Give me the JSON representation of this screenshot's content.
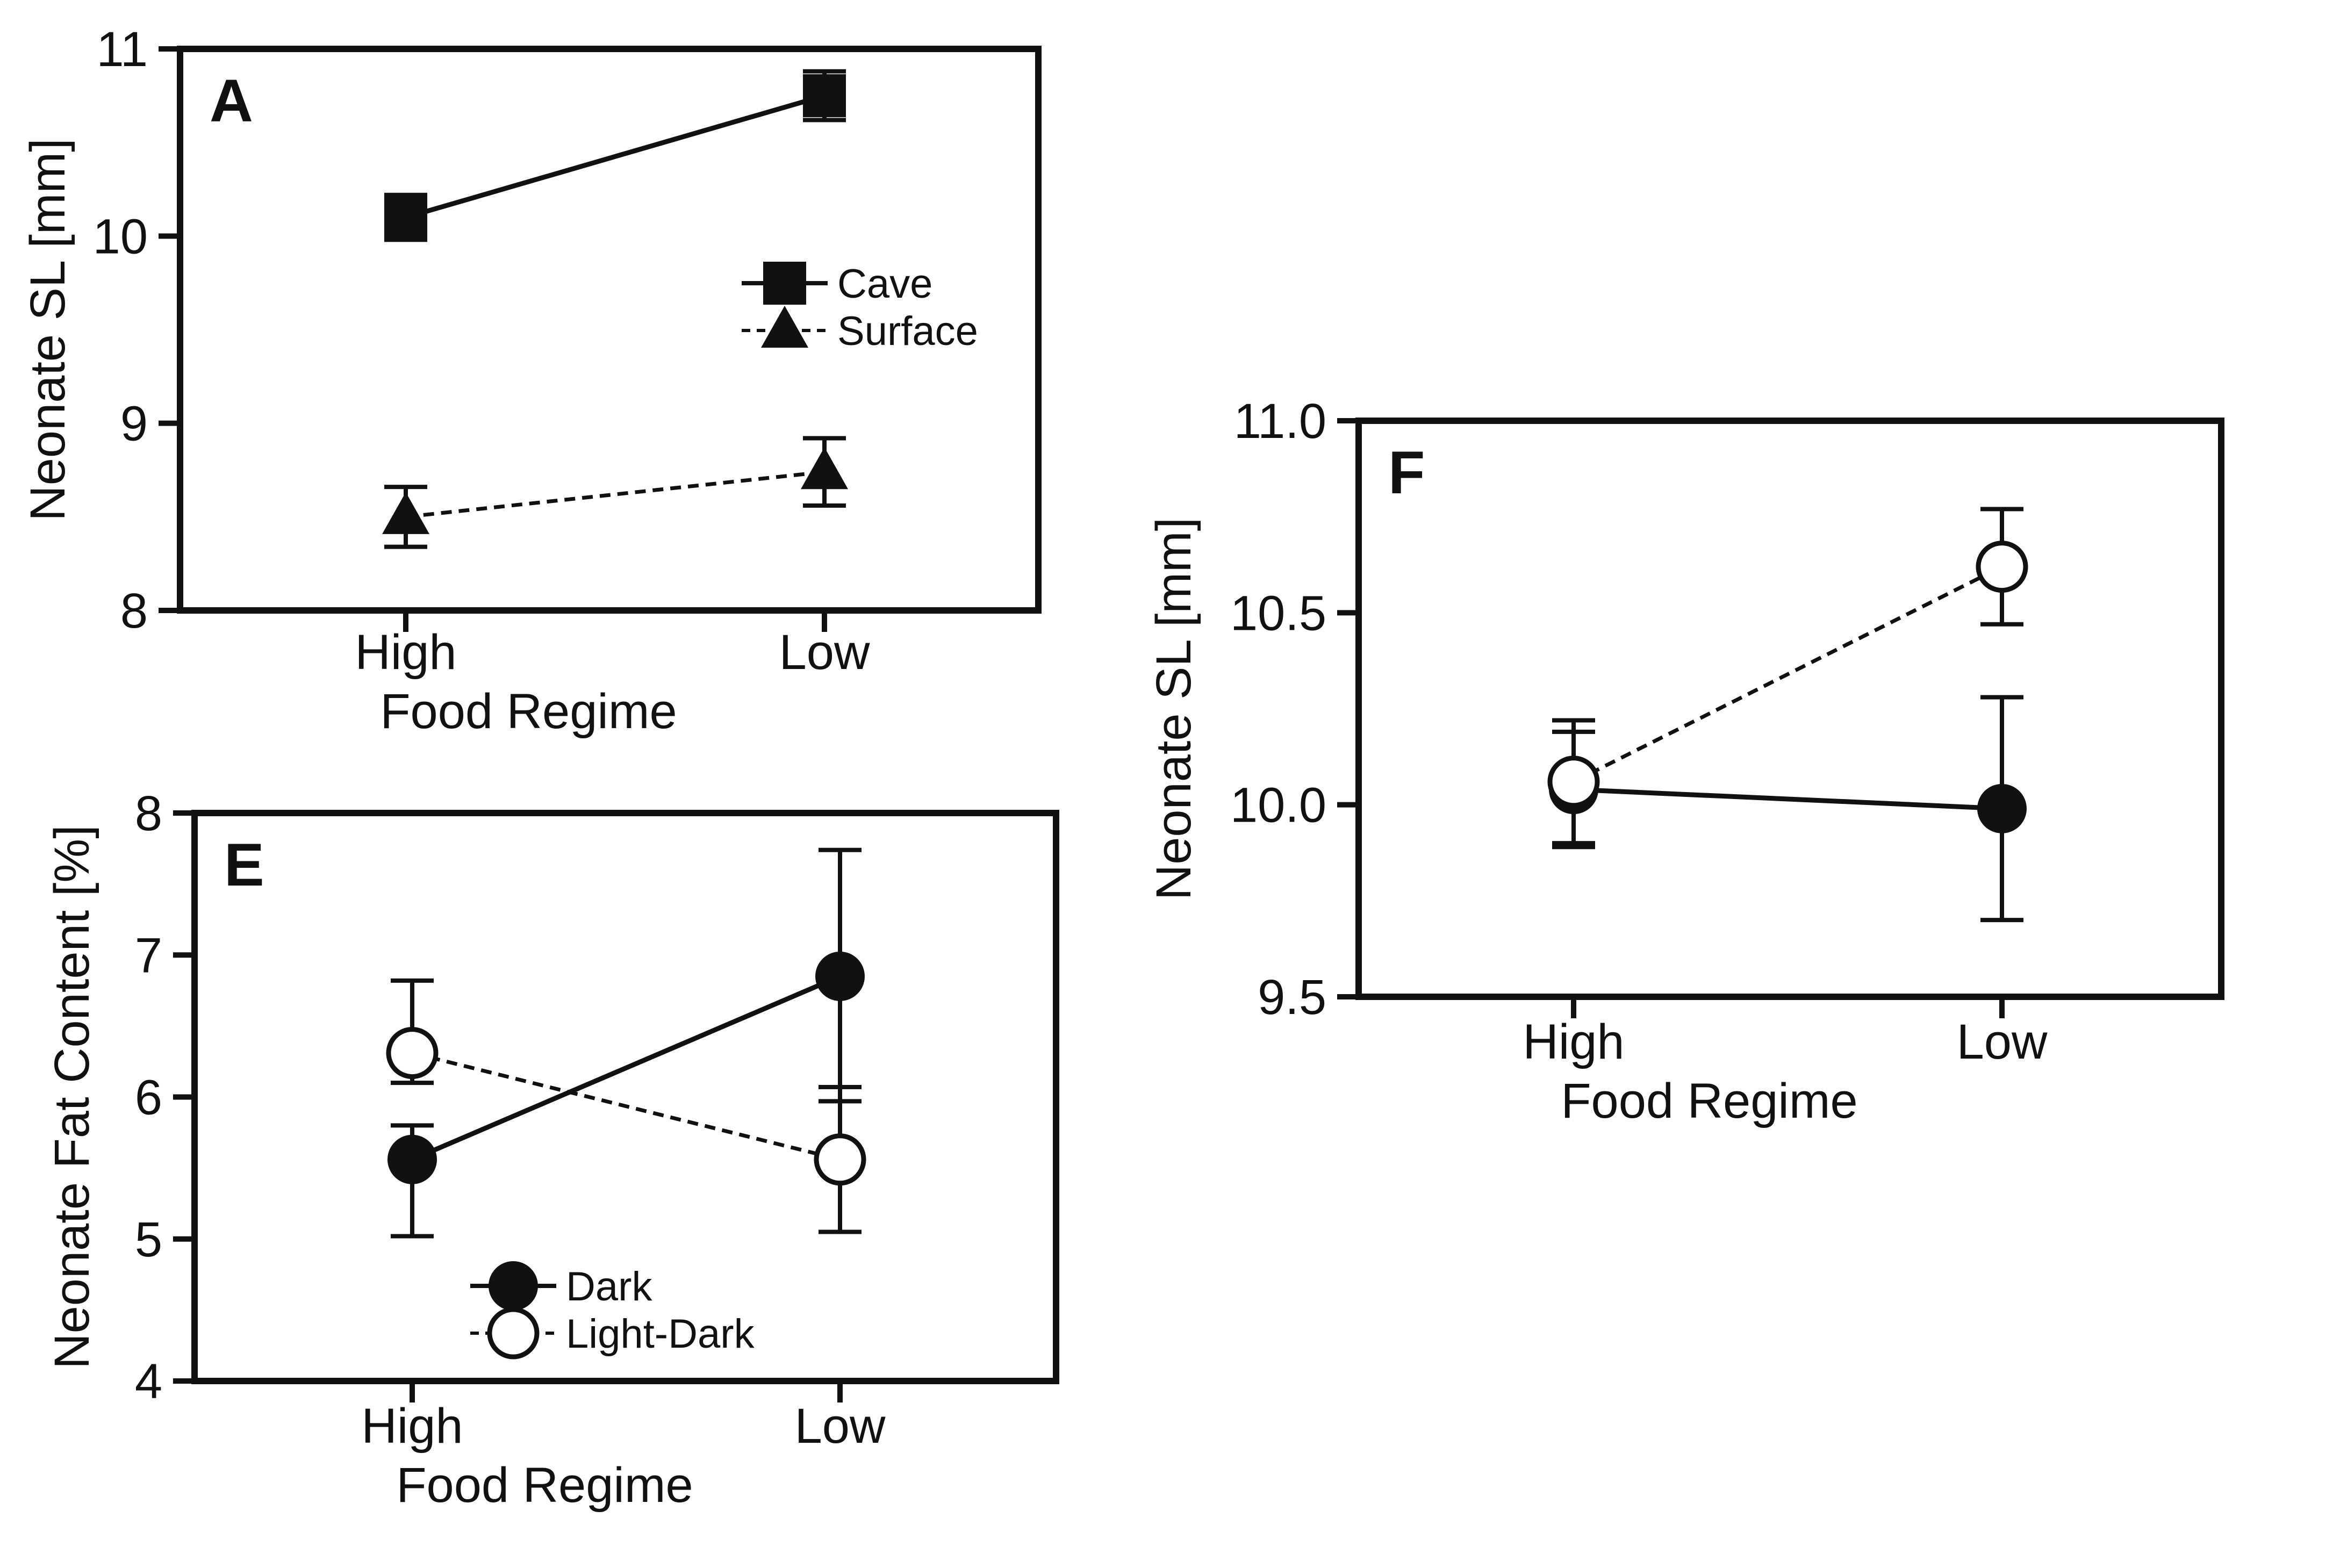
{
  "chart_data": [
    {
      "type": "line",
      "panel": "A",
      "title": "",
      "categories": [
        "High",
        "Low"
      ],
      "xlabel": "Food Regime",
      "ylabel": "Neonate SL [mm]",
      "ylim": [
        8,
        11
      ],
      "yticks": [
        "8",
        "9",
        "10",
        "11"
      ],
      "yticks_values": [
        8,
        9,
        10,
        11
      ],
      "grid": false,
      "legend": "center-right",
      "series": [
        {
          "name": "Cave",
          "marker": "square",
          "line": "solid",
          "values": [
            10.1,
            10.75
          ],
          "err": [
            0.12,
            0.13
          ]
        },
        {
          "name": "Surface",
          "marker": "triangle",
          "line": "dashed",
          "values": [
            8.5,
            8.74
          ],
          "err": [
            0.16,
            0.18
          ]
        }
      ]
    },
    {
      "type": "line",
      "panel": "E",
      "title": "",
      "categories": [
        "High",
        "Low"
      ],
      "xlabel": "Food Regime",
      "ylabel": "Neonate Fat Content [%]",
      "ylim": [
        4,
        8
      ],
      "yticks": [
        "4",
        "5",
        "6",
        "7",
        "8"
      ],
      "yticks_values": [
        4,
        5,
        6,
        7,
        8
      ],
      "grid": false,
      "legend": "bottom-center",
      "series": [
        {
          "name": "Dark",
          "marker": "filled-circle",
          "line": "solid",
          "values": [
            5.56,
            6.85
          ],
          "err_up": [
            0.24,
            0.89
          ],
          "err_down": [
            0.54,
            0.88
          ]
        },
        {
          "name": "Light-Dark",
          "marker": "open-circle",
          "line": "dashed",
          "values": [
            6.31,
            5.56
          ],
          "err_up": [
            0.51,
            0.51
          ],
          "err_down": [
            0.21,
            0.51
          ]
        }
      ]
    },
    {
      "type": "line",
      "panel": "F",
      "title": "",
      "categories": [
        "High",
        "Low"
      ],
      "xlabel": "Food Regime",
      "ylabel": "Neonate SL [mm]",
      "ylim": [
        9.5,
        11.0
      ],
      "yticks": [
        "9.5",
        "10.0",
        "10.5",
        "11.0"
      ],
      "yticks_values": [
        9.5,
        10.0,
        10.5,
        11.0
      ],
      "grid": false,
      "legend": "none",
      "series": [
        {
          "marker": "filled-circle",
          "line": "solid",
          "values": [
            10.04,
            9.99
          ],
          "err_up": [
            0.15,
            0.29
          ],
          "err_down": [
            0.15,
            0.29
          ]
        },
        {
          "marker": "open-circle",
          "line": "dashed",
          "values": [
            10.06,
            10.62
          ],
          "err_up": [
            0.16,
            0.15
          ],
          "err_down": [
            0.16,
            0.15
          ]
        }
      ]
    }
  ]
}
